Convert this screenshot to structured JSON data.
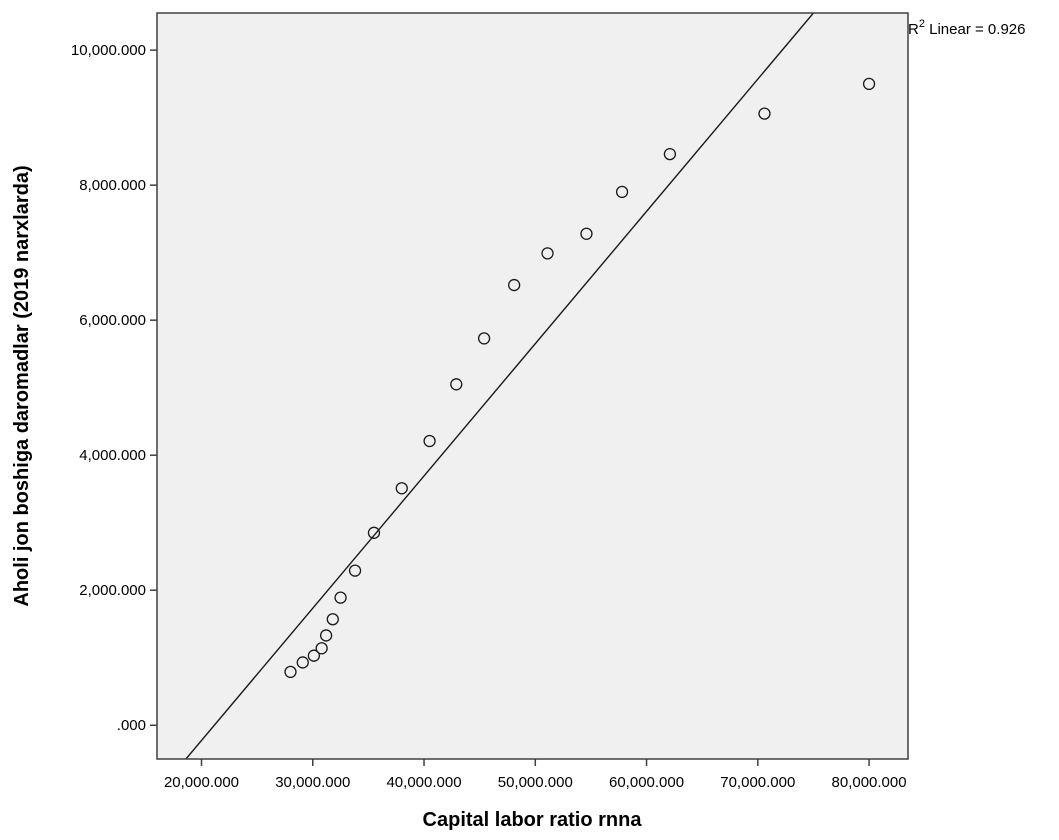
{
  "chart_data": {
    "type": "scatter",
    "xlabel": "Capital labor ratio rnna",
    "ylabel": "Aholi jon boshiga daromadlar (2019 narxlarda)",
    "xlim": [
      16000,
      83500
    ],
    "ylim": [
      -500,
      10550
    ],
    "x_ticks": [
      20000,
      30000,
      40000,
      50000,
      60000,
      70000,
      80000
    ],
    "x_tick_labels": [
      "20,000.000",
      "30,000.000",
      "40,000.000",
      "50,000.000",
      "60,000.000",
      "70,000.000",
      "80,000.000"
    ],
    "y_ticks": [
      0,
      2000,
      4000,
      6000,
      8000,
      10000
    ],
    "y_tick_labels": [
      ".000",
      "2,000.000",
      "4,000.000",
      "6,000.000",
      "8,000.000",
      "10,000.000"
    ],
    "grid": false,
    "annotation": {
      "r2_prefix": "R",
      "r2_sup": "2",
      "r2_suffix": " Linear = 0.926"
    },
    "fit_line": {
      "x": [
        18600,
        75000
      ],
      "y": [
        -500,
        10550
      ]
    },
    "points": [
      {
        "x": 28000,
        "y": 790
      },
      {
        "x": 29100,
        "y": 930
      },
      {
        "x": 30100,
        "y": 1030
      },
      {
        "x": 30800,
        "y": 1140
      },
      {
        "x": 31200,
        "y": 1330
      },
      {
        "x": 31800,
        "y": 1570
      },
      {
        "x": 32500,
        "y": 1890
      },
      {
        "x": 33800,
        "y": 2290
      },
      {
        "x": 35500,
        "y": 2850
      },
      {
        "x": 38000,
        "y": 3510
      },
      {
        "x": 40500,
        "y": 4210
      },
      {
        "x": 42900,
        "y": 5050
      },
      {
        "x": 45400,
        "y": 5730
      },
      {
        "x": 48100,
        "y": 6520
      },
      {
        "x": 51100,
        "y": 6990
      },
      {
        "x": 54600,
        "y": 7280
      },
      {
        "x": 57800,
        "y": 7900
      },
      {
        "x": 62100,
        "y": 8460
      },
      {
        "x": 70600,
        "y": 9060
      },
      {
        "x": 80000,
        "y": 9500
      }
    ],
    "colors": {
      "plot_bg": "#f0f0f0",
      "frame": "#404040",
      "marker_stroke": "#1a1a1a",
      "fit_line": "#1a1a1a"
    }
  }
}
